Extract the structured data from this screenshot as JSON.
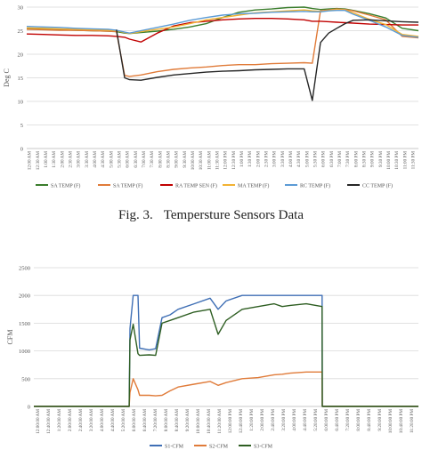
{
  "caption": {
    "label": "Fig. 3.",
    "text": "Tempersture Sensors Data"
  },
  "chart_data": [
    {
      "type": "line",
      "title": "",
      "ylabel": "Deg C",
      "xlabel": "",
      "ylim": [
        0,
        30
      ],
      "yticks": [
        "0",
        "5",
        "10",
        "15",
        "20",
        "25",
        "30"
      ],
      "xticklabels": [
        "12:00 AM",
        "12:30 AM",
        "1:00 AM",
        "1:30 AM",
        "2:00 AM",
        "2:30 AM",
        "3:00 AM",
        "3:30 AM",
        "4:00 AM",
        "4:30 AM",
        "5:00 AM",
        "5:30 AM",
        "6:00 AM",
        "6:30 AM",
        "7:00 AM",
        "7:30 AM",
        "8:00 AM",
        "8:30 AM",
        "9:00 AM",
        "9:30 AM",
        "10:00 AM",
        "10:30 AM",
        "11:00 AM",
        "11:30 AM",
        "12:00 PM",
        "12:30 PM",
        "1:00 PM",
        "1:30 PM",
        "2:00 PM",
        "2:30 PM",
        "3:00 PM",
        "3:30 PM",
        "4:00 PM",
        "4:30 PM",
        "5:00 PM",
        "5:30 PM",
        "6:00 PM",
        "6:30 PM",
        "7:00 PM",
        "7:30 PM",
        "8:00 PM",
        "8:30 PM",
        "9:00 PM",
        "9:30 PM",
        "10:00 PM",
        "10:30 PM",
        "11:00 PM",
        "11:30 PM"
      ],
      "x": [
        0,
        1,
        2,
        3,
        4,
        5,
        5.5,
        6,
        6.3,
        7,
        8,
        9,
        10,
        11,
        12,
        13,
        14,
        15,
        16,
        17,
        17.5,
        18,
        18.5,
        19,
        19.5,
        20,
        21,
        22,
        23,
        24
      ],
      "legend_position": "bottom",
      "series": [
        {
          "name": "SA TEMP (F)",
          "color": "#3a7d2c",
          "values": [
            25.5,
            25.3,
            25.2,
            25.1,
            25.0,
            24.9,
            24.8,
            24.5,
            24.4,
            24.6,
            24.9,
            25.3,
            25.8,
            26.5,
            27.8,
            28.9,
            29.4,
            29.6,
            29.9,
            30.0,
            29.7,
            29.5,
            29.6,
            29.7,
            29.6,
            29.3,
            28.6,
            27.7,
            25.5,
            25.0
          ]
        },
        {
          "name": "SA TEMP (F)",
          "color": "#e07b39",
          "values": [
            25.3,
            25.2,
            25.1,
            25.1,
            25.0,
            24.9,
            24.8,
            15.5,
            15.3,
            15.6,
            16.3,
            16.8,
            17.1,
            17.3,
            17.6,
            17.8,
            17.8,
            18.0,
            18.1,
            18.2,
            18.1,
            29.2,
            29.4,
            29.6,
            29.5,
            29.2,
            28.3,
            27.3,
            23.8,
            23.5
          ]
        },
        {
          "name": "RA TEMP SEN (F)",
          "color": "#c00000",
          "values": [
            24.3,
            24.2,
            24.1,
            24.0,
            24.0,
            23.9,
            23.8,
            23.6,
            23.2,
            22.6,
            24.5,
            26.0,
            26.7,
            27.0,
            27.3,
            27.5,
            27.6,
            27.6,
            27.5,
            27.3,
            27.0,
            27.0,
            26.9,
            26.8,
            26.7,
            26.6,
            26.4,
            26.3,
            26.2,
            26.2
          ]
        },
        {
          "name": "MA TEMP (F)",
          "color": "#f2b233",
          "values": [
            25.6,
            25.5,
            25.4,
            25.3,
            25.2,
            25.1,
            25.0,
            24.6,
            24.4,
            24.8,
            25.3,
            25.8,
            26.5,
            27.3,
            27.8,
            28.3,
            28.8,
            29.0,
            29.2,
            29.4,
            29.2,
            29.1,
            29.3,
            29.5,
            29.4,
            28.8,
            27.4,
            26.3,
            24.2,
            23.8
          ]
        },
        {
          "name": "RC TEMP (F)",
          "color": "#5b9bd5",
          "values": [
            25.9,
            25.8,
            25.7,
            25.5,
            25.4,
            25.3,
            25.1,
            24.7,
            24.5,
            25.0,
            25.7,
            26.4,
            27.2,
            27.8,
            28.3,
            28.6,
            28.7,
            28.9,
            29.0,
            29.1,
            29.0,
            29.0,
            29.2,
            29.3,
            29.3,
            28.5,
            27.2,
            25.8,
            24.0,
            23.6
          ]
        },
        {
          "name": "CC TEMP (F)",
          "color": "#262626",
          "values": [
            null,
            null,
            null,
            null,
            null,
            null,
            25.2,
            15.0,
            14.6,
            14.5,
            15.1,
            15.6,
            15.9,
            16.2,
            16.4,
            16.5,
            16.7,
            16.8,
            16.9,
            16.9,
            10.2,
            22.5,
            24.5,
            25.5,
            26.5,
            27.2,
            27.3,
            27.1,
            26.9,
            26.8
          ]
        }
      ]
    },
    {
      "type": "line",
      "title": "",
      "ylabel": "CFM",
      "xlabel": "",
      "ylim": [
        0,
        2500
      ],
      "yticks": [
        "0",
        "500",
        "1000",
        "1500",
        "2000",
        "2500"
      ],
      "xticklabels": [
        "12:00:00 AM",
        "12:40:00 AM",
        "1:20:00 AM",
        "2:00:00 AM",
        "2:40:00 AM",
        "3:20:00 AM",
        "4:00:00 AM",
        "4:40:00 AM",
        "5:20:00 AM",
        "6:00:00 AM",
        "6:40:00 AM",
        "7:20:00 AM",
        "8:00:00 AM",
        "8:40:00 AM",
        "9:20:00 AM",
        "10:00:00 AM",
        "10:40:00 AM",
        "11:20:00 AM",
        "12:00:00 PM",
        "12:40:00 PM",
        "1:20:00 PM",
        "2:00:00 PM",
        "2:40:00 PM",
        "3:20:00 PM",
        "4:00:00 PM",
        "4:40:00 PM",
        "5:20:00 PM",
        "6:00:00 PM",
        "6:40:00 PM",
        "7:20:00 PM",
        "8:00:00 PM",
        "8:40:00 PM",
        "9:20:00 PM",
        "10:00:00 PM",
        "10:40:00 PM",
        "11:20:00 PM"
      ],
      "x": [
        0,
        5.95,
        6.0,
        6.2,
        6.5,
        6.6,
        7.2,
        7.6,
        8.0,
        8.5,
        9.0,
        10.0,
        11.0,
        11.5,
        12.0,
        13.0,
        14.0,
        15.0,
        15.5,
        16.0,
        17.0,
        17.99,
        18.0,
        24.0
      ],
      "legend_position": "bottom",
      "series": [
        {
          "name": "S1-CFM",
          "color": "#3f6fb5",
          "values": [
            0,
            0,
            1400,
            2000,
            2000,
            1050,
            1020,
            1040,
            1600,
            1650,
            1750,
            1850,
            1950,
            1750,
            1900,
            2000,
            2000,
            2000,
            2000,
            2000,
            2000,
            2000,
            0,
            0
          ]
        },
        {
          "name": "S2-CFM",
          "color": "#e07b39",
          "values": [
            0,
            0,
            250,
            500,
            300,
            200,
            200,
            190,
            200,
            280,
            350,
            400,
            450,
            380,
            430,
            500,
            520,
            570,
            580,
            600,
            620,
            620,
            0,
            0
          ]
        },
        {
          "name": "S3-CFM",
          "color": "#2e5e22",
          "values": [
            0,
            0,
            1200,
            1480,
            950,
            920,
            930,
            920,
            1500,
            1550,
            1600,
            1700,
            1750,
            1300,
            1550,
            1750,
            1800,
            1850,
            1800,
            1820,
            1850,
            1800,
            0,
            0
          ]
        }
      ]
    }
  ]
}
